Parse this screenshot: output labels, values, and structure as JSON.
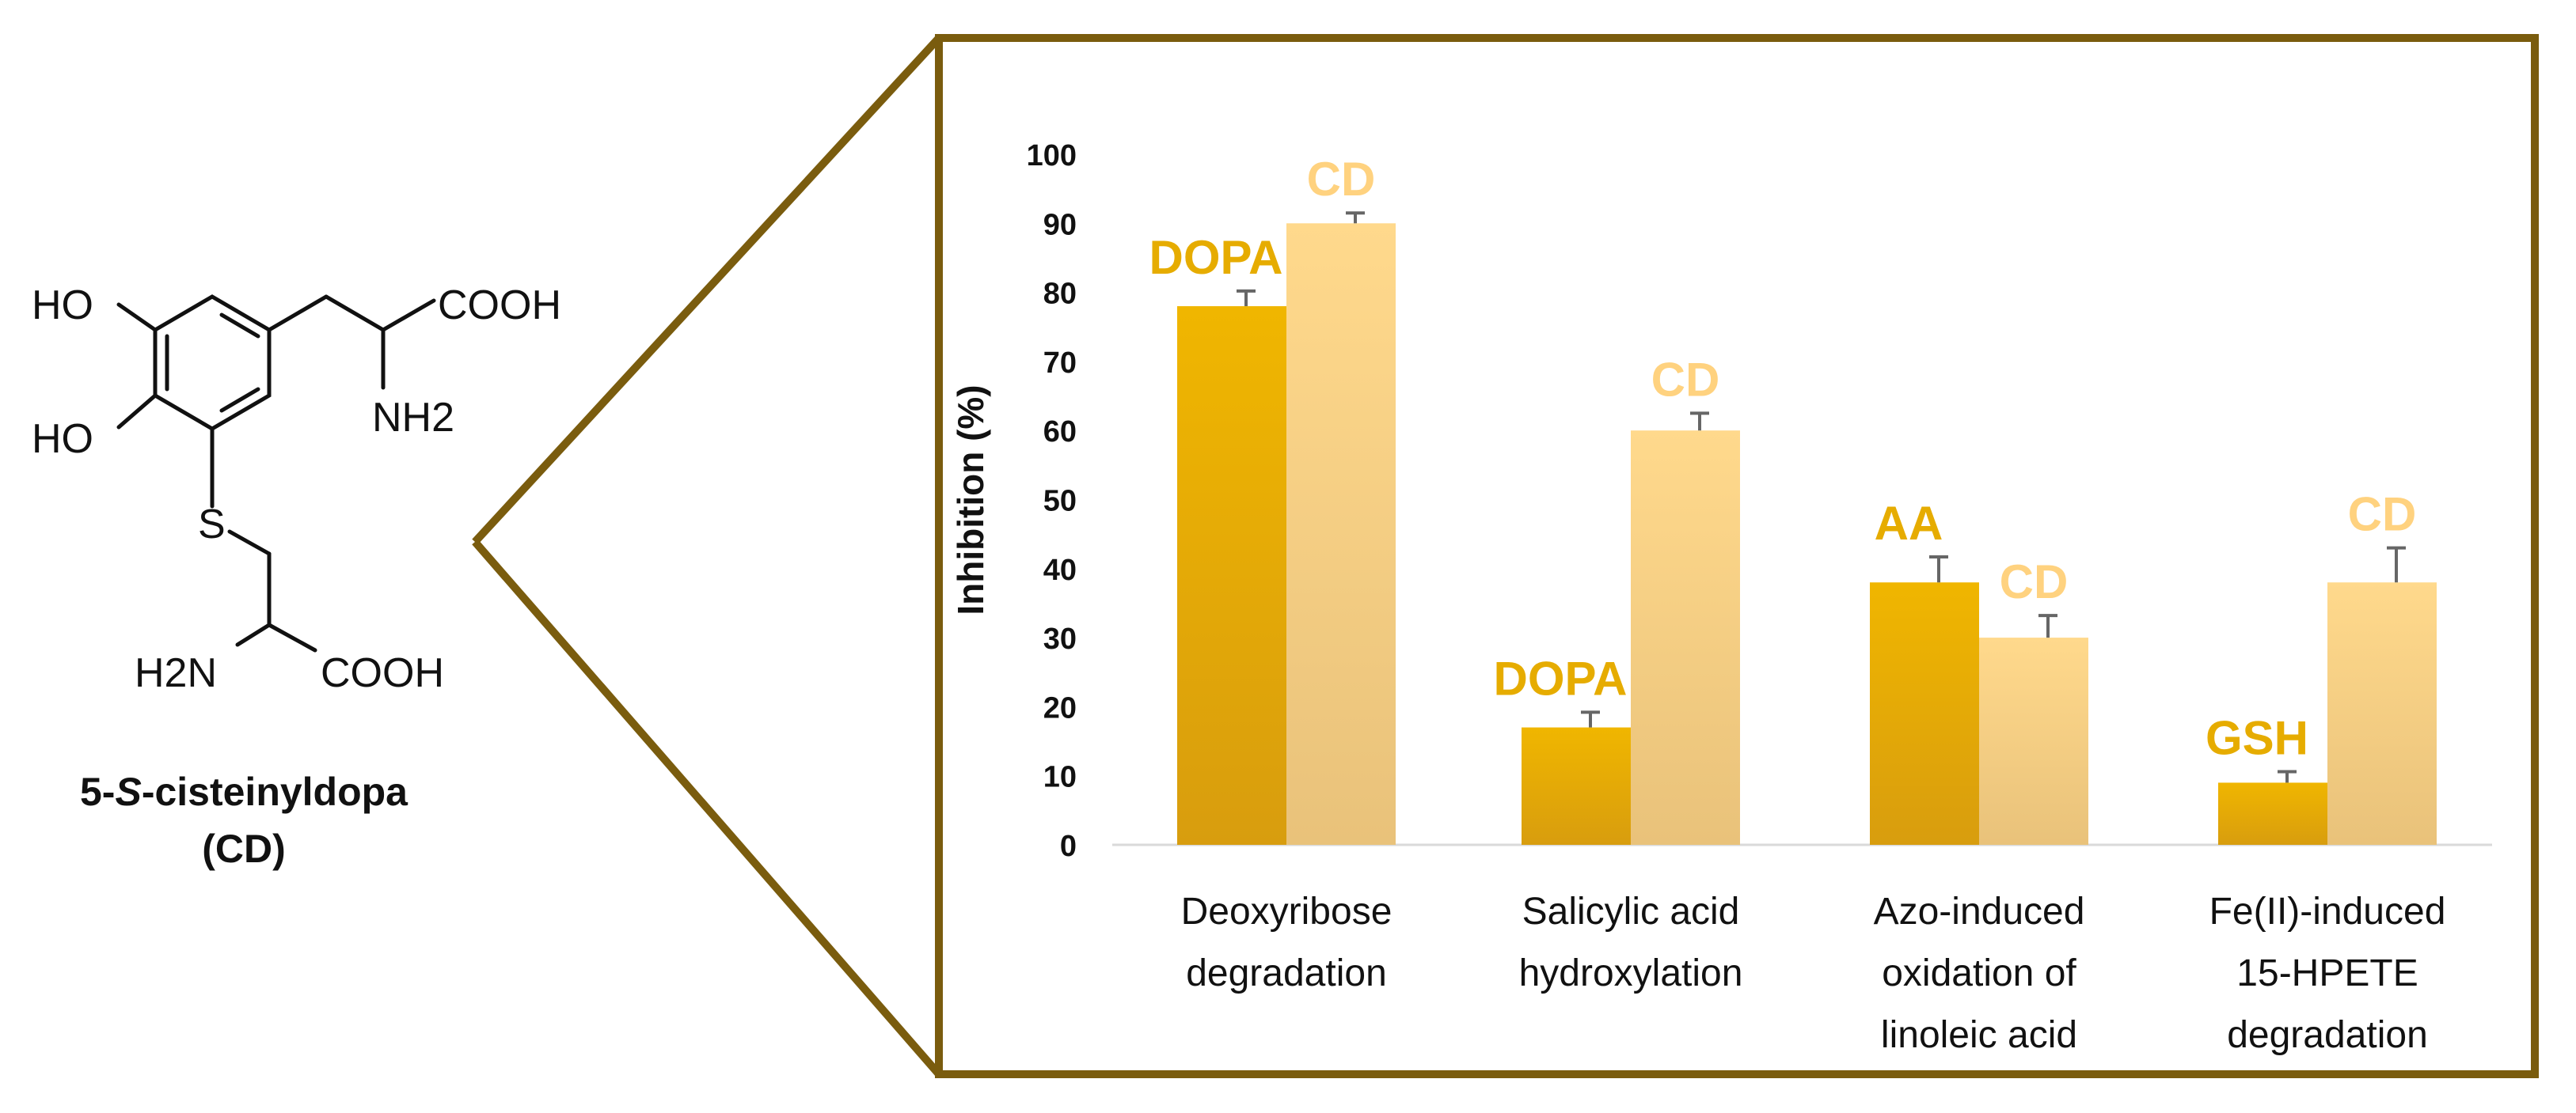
{
  "compound": {
    "name_prefix": "5-",
    "name_italic": "S",
    "name_suffix": "-cisteinyldopa",
    "abbreviation": "(CD)",
    "structure_labels": {
      "ho_top": "HO",
      "ho_bottom": "HO",
      "cooh_top": "COOH",
      "nh2_top": "NH2",
      "sulfur": "S",
      "h2n_bottom": "H2N",
      "cooh_bottom": "COOH"
    }
  },
  "colors": {
    "frame": "#7a5c0e",
    "dark_bar_top": "#f0b600",
    "dark_bar_bottom": "#d89d0e",
    "light_bar_top": "#ffd98c",
    "light_bar_bottom": "#e9c27a",
    "dark_label": "#e6ac00",
    "light_label": "#ffd27f",
    "error_bar": "#666666",
    "axis_text": "#111111"
  },
  "chart_data": {
    "type": "bar",
    "ylabel": "Inhibition (%)",
    "ylim": [
      0,
      100
    ],
    "yticks": [
      0,
      10,
      20,
      30,
      40,
      50,
      60,
      70,
      80,
      90,
      100
    ],
    "grid": false,
    "categories": [
      [
        "Deoxyribose",
        "degradation"
      ],
      [
        "Salicylic acid",
        "hydroxylation"
      ],
      [
        "Azo-induced",
        "oxidation of",
        "linoleic acid"
      ],
      [
        "Fe(II)-induced",
        "15-HPETE",
        "degradation"
      ]
    ],
    "bars": [
      {
        "category": 0,
        "label": "DOPA",
        "value": 78,
        "error": 2.2,
        "style": "dark"
      },
      {
        "category": 0,
        "label": "CD",
        "value": 90,
        "error": 1.5,
        "style": "light"
      },
      {
        "category": 1,
        "label": "DOPA",
        "value": 17,
        "error": 2.2,
        "style": "dark"
      },
      {
        "category": 1,
        "label": "CD",
        "value": 60,
        "error": 2.5,
        "style": "light"
      },
      {
        "category": 2,
        "label": "AA",
        "value": 38,
        "error": 3.7,
        "style": "dark"
      },
      {
        "category": 2,
        "label": "CD",
        "value": 30,
        "error": 3.2,
        "style": "light"
      },
      {
        "category": 3,
        "label": "GSH",
        "value": 9,
        "error": 1.6,
        "style": "dark"
      },
      {
        "category": 3,
        "label": "CD",
        "value": 38,
        "error": 5.0,
        "style": "light"
      }
    ]
  }
}
